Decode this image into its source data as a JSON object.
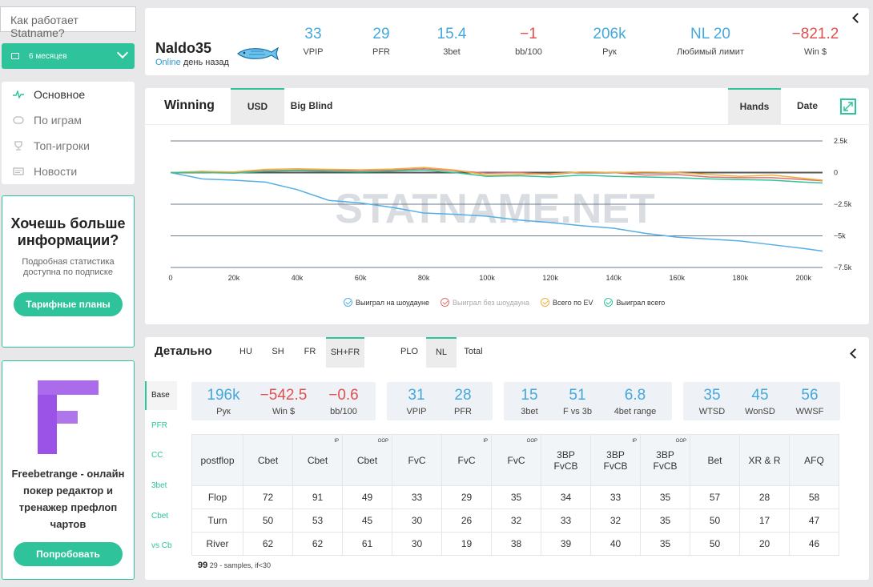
{
  "sidebar": {
    "help_link": "Как работает Statname?",
    "period": "6 месяцев",
    "nav": [
      {
        "label": "Основное",
        "icon": "pulse-icon",
        "active": true
      },
      {
        "label": "По играм",
        "icon": "table-icon",
        "active": false
      },
      {
        "label": "Топ-игроки",
        "icon": "trophy-icon",
        "active": false
      },
      {
        "label": "Новости",
        "icon": "news-icon",
        "active": false
      }
    ],
    "promo": {
      "title": "Хочешь больше информации?",
      "text": "Подробная статистика доступна по подписке",
      "button": "Тарифные планы"
    },
    "ad": {
      "text": "Freebetrange - онлайн покер редактор и тренажер префлоп чартов",
      "button": "Попробовать"
    }
  },
  "header": {
    "player_name": "Naldo35",
    "status_online": "Online",
    "status_time": "день назад",
    "stats": [
      {
        "value": "33",
        "label": "VPIP",
        "color": "blue"
      },
      {
        "value": "29",
        "label": "PFR",
        "color": "blue"
      },
      {
        "value": "15.4",
        "label": "3bet",
        "color": "blue"
      },
      {
        "value": "−1",
        "label": "bb/100",
        "color": "red"
      },
      {
        "value": "206k",
        "label": "Рук",
        "color": "blue"
      },
      {
        "value": "NL 20",
        "label": "Любимый лимит",
        "color": "blue"
      },
      {
        "value": "−821.2",
        "label": "Win $",
        "color": "red"
      }
    ]
  },
  "chart_panel": {
    "title": "Winning",
    "tab_usd": "USD",
    "tab_bb": "Big Blind",
    "tab_hands": "Hands",
    "tab_date": "Date",
    "watermark": "STATNAME.NET"
  },
  "chart_data": {
    "type": "line",
    "x_ticks": [
      "0",
      "20k",
      "40k",
      "60k",
      "80k",
      "100k",
      "120k",
      "140k",
      "160k",
      "180k",
      "200k"
    ],
    "y_ticks": [
      "2.5k",
      "0",
      "−2.5k",
      "−5k",
      "−7.5k"
    ],
    "xlim": [
      0,
      206000
    ],
    "ylim": [
      -7500,
      2500
    ],
    "legend_position": "bottom",
    "series": [
      {
        "name": "Выиграл на шоудауне",
        "color": "#55aee6",
        "x": [
          0,
          10000,
          20000,
          30000,
          40000,
          50000,
          60000,
          70000,
          80000,
          90000,
          100000,
          110000,
          120000,
          130000,
          140000,
          150000,
          160000,
          170000,
          180000,
          190000,
          200000,
          206000
        ],
        "y": [
          0,
          -500,
          -600,
          -750,
          -1350,
          -2200,
          -2400,
          -2750,
          -3200,
          -3300,
          -3450,
          -3750,
          -3950,
          -4200,
          -4400,
          -4800,
          -5100,
          -5250,
          -5400,
          -5700,
          -6000,
          -6200
        ]
      },
      {
        "name": "Выиграл без шоудауна",
        "color": "#e07070",
        "x": [
          0,
          10000,
          20000,
          30000,
          40000,
          50000,
          60000,
          70000,
          80000,
          90000,
          100000,
          110000,
          120000,
          130000,
          140000,
          150000,
          160000,
          170000,
          180000,
          190000,
          200000,
          206000
        ],
        "y": [
          0,
          50,
          0,
          150,
          200,
          200,
          120,
          200,
          300,
          150,
          -50,
          0,
          -150,
          50,
          0,
          -200,
          -150,
          -350,
          -400,
          -400,
          -550,
          -650
        ]
      },
      {
        "name": "Всего по EV",
        "color": "#f0b040",
        "x": [
          0,
          10000,
          20000,
          30000,
          40000,
          50000,
          60000,
          70000,
          80000,
          90000,
          100000,
          110000,
          120000,
          130000,
          140000,
          150000,
          160000,
          170000,
          180000,
          190000,
          200000,
          206000
        ],
        "y": [
          0,
          100,
          50,
          250,
          300,
          250,
          220,
          280,
          400,
          200,
          -200,
          -150,
          -100,
          50,
          0,
          50,
          0,
          -150,
          -300,
          -200,
          -450,
          -600
        ]
      },
      {
        "name": "Выиграл всего",
        "color": "#2fc39a",
        "x": [
          0,
          10000,
          20000,
          30000,
          40000,
          50000,
          60000,
          70000,
          80000,
          90000,
          100000,
          110000,
          120000,
          130000,
          140000,
          150000,
          160000,
          170000,
          180000,
          190000,
          200000,
          206000
        ],
        "y": [
          0,
          0,
          -50,
          100,
          150,
          100,
          50,
          120,
          200,
          0,
          -300,
          -250,
          -350,
          -200,
          -300,
          -350,
          -400,
          -500,
          -550,
          -600,
          -750,
          -821
        ]
      }
    ]
  },
  "detail": {
    "title": "Детально",
    "game_tabs": [
      "HU",
      "SH",
      "FR",
      "SH+FR"
    ],
    "game_selected": "SH+FR",
    "type_tabs": [
      "PLO",
      "NL",
      "Total"
    ],
    "type_selected": "NL",
    "side_tabs": [
      "Base",
      "PFR",
      "CC",
      "3bet",
      "Cbet",
      "vs Cb"
    ],
    "side_selected": "Base",
    "groups": [
      [
        {
          "value": "196k",
          "label": "Рук",
          "color": "blue"
        },
        {
          "value": "−542.5",
          "label": "Win $",
          "color": "red"
        },
        {
          "value": "−0.6",
          "label": "bb/100",
          "color": "red"
        }
      ],
      [
        {
          "value": "31",
          "label": "VPIP",
          "color": "blue"
        },
        {
          "value": "28",
          "label": "PFR",
          "color": "blue"
        }
      ],
      [
        {
          "value": "15",
          "label": "3bet",
          "color": "blue"
        },
        {
          "value": "51",
          "label": "F vs 3b",
          "color": "blue"
        },
        {
          "value": "6.8",
          "label": "4bet range",
          "color": "blue"
        }
      ],
      [
        {
          "value": "35",
          "label": "WTSD",
          "color": "blue"
        },
        {
          "value": "45",
          "label": "WonSD",
          "color": "blue"
        },
        {
          "value": "56",
          "label": "WWSF",
          "color": "blue"
        }
      ]
    ],
    "table": {
      "headers": [
        {
          "l1": "postflop",
          "l2": "",
          "sup": ""
        },
        {
          "l1": "Cbet",
          "l2": "",
          "sup": ""
        },
        {
          "l1": "Cbet",
          "l2": "",
          "sup": "IP"
        },
        {
          "l1": "Cbet",
          "l2": "",
          "sup": "OOP"
        },
        {
          "l1": "FvC",
          "l2": "",
          "sup": ""
        },
        {
          "l1": "FvC",
          "l2": "",
          "sup": "IP"
        },
        {
          "l1": "FvC",
          "l2": "",
          "sup": "OOP"
        },
        {
          "l1": "3BP",
          "l2": "FvCB",
          "sup": ""
        },
        {
          "l1": "3BP",
          "l2": "FvCB",
          "sup": "IP"
        },
        {
          "l1": "3BP",
          "l2": "FvCB",
          "sup": "OOP"
        },
        {
          "l1": "Bet",
          "l2": "",
          "sup": ""
        },
        {
          "l1": "XR & R",
          "l2": "",
          "sup": ""
        },
        {
          "l1": "AFQ",
          "l2": "",
          "sup": ""
        }
      ],
      "rows": [
        [
          "Flop",
          "72",
          "91",
          "49",
          "33",
          "29",
          "35",
          "34",
          "33",
          "35",
          "57",
          "28",
          "58"
        ],
        [
          "Turn",
          "50",
          "53",
          "45",
          "30",
          "26",
          "32",
          "33",
          "32",
          "35",
          "50",
          "17",
          "47"
        ],
        [
          "River",
          "62",
          "62",
          "61",
          "30",
          "19",
          "38",
          "39",
          "40",
          "35",
          "50",
          "20",
          "46"
        ]
      ]
    },
    "samples_big": "99",
    "samples_text": "29 - samples, if<30"
  }
}
